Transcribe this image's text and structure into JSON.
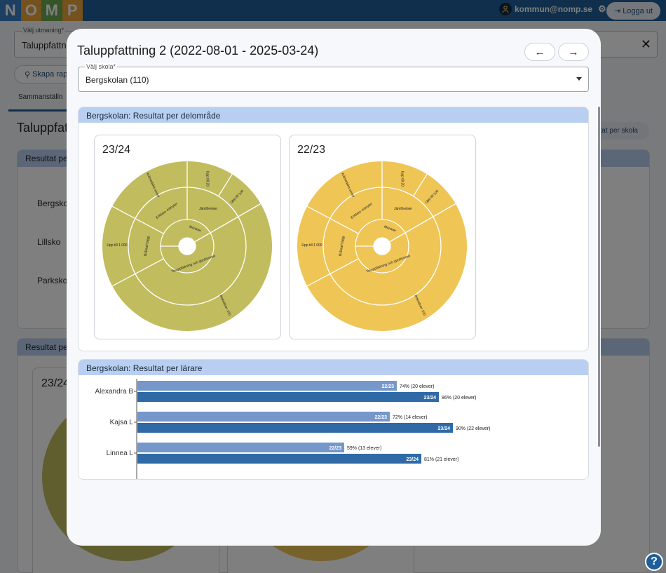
{
  "logo": {
    "letters": [
      "N",
      "O",
      "M",
      "P"
    ],
    "colors": [
      "#3b7fc4",
      "#e9a23a",
      "#6aa84f",
      "#e9a23a"
    ]
  },
  "header": {
    "user_email": "kommun@nomp.se",
    "logout_label": "Logga ut"
  },
  "background": {
    "select_label": "Välj utmaning*",
    "select_value": "Taluppfattni",
    "button_label": "Skapa rapp",
    "tab_label": "Sammanställn",
    "page_heading": "Taluppfatt",
    "right_button": "tat per skola",
    "card1_title": "Resultat per",
    "schools": [
      "Bergsko",
      "Lillsko",
      "Parksko"
    ],
    "card2_title": "Resultat per",
    "card2_inner_title": "23/24"
  },
  "modal": {
    "title": "Taluppfattning 2 (2022-08-01 - 2025-03-24)",
    "prev_label": "←",
    "next_label": "→",
    "school_select_label": "Välj skola*",
    "school_select_value": "Bergskolan (110)",
    "section1_title": "Bergskolan: Resultat per delområde",
    "section2_title": "Bergskolan: Resultat per lärare"
  },
  "sunbursts": [
    {
      "title": "23/24",
      "color": "#c1bc5e"
    },
    {
      "title": "22/23",
      "color": "#efc556"
    }
  ],
  "sunburst_labels": {
    "center_ring": [
      "Mönster",
      "Taluppfattning och jämförelser"
    ],
    "middle_ring": [
      "Enklare mönster",
      "Jämförelser",
      "Bråktal/Tidigt"
    ],
    "outer_ring": [
      "Aritmetiska serier",
      "Upp till 20",
      "Upp till 100",
      "Upp till 1 000",
      "Bokstäver 100"
    ]
  },
  "chart_data": {
    "type": "bar",
    "categories": [
      "Alexandra B",
      "Kajsa L",
      "Linnea L"
    ],
    "xlim": [
      0,
      100
    ],
    "series": [
      {
        "name": "22/23",
        "values": [
          74,
          72,
          59
        ],
        "labels": [
          "74% (20 elever)",
          "72% (14 elever)",
          "59% (13 elever)"
        ],
        "color": "#7597c9"
      },
      {
        "name": "23/24",
        "values": [
          86,
          90,
          81
        ],
        "labels": [
          "86% (20 elever)",
          "90% (22 elever)",
          "81% (21 elever)"
        ],
        "color": "#2f6aa6"
      }
    ]
  },
  "help_icon": "question-mark-icon"
}
